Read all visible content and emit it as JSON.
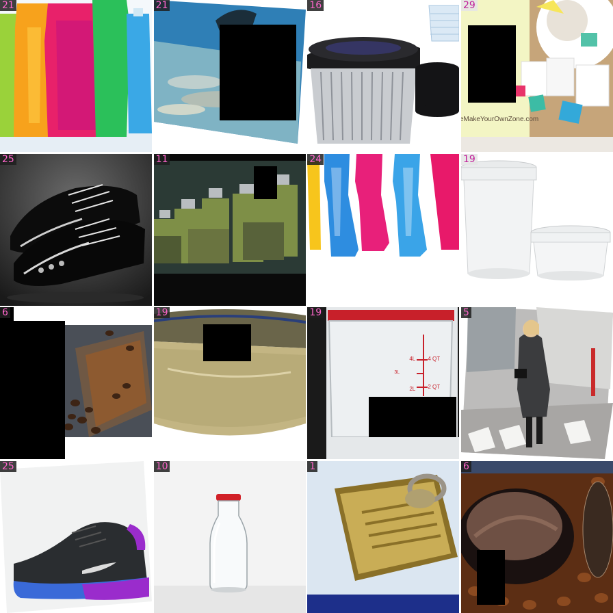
{
  "grid": {
    "rows": 4,
    "cols": 4
  },
  "tiles": [
    {
      "label": "21",
      "icon": "soda-bottles-image",
      "title": "soda bottles"
    },
    {
      "label": "21",
      "icon": "underwater-plastic-image",
      "title": "underwater plastic waste"
    },
    {
      "label": "16",
      "icon": "coffee-cup-lids-image",
      "title": "paper cups with lids"
    },
    {
      "label": "29",
      "icon": "tea-bags-image",
      "title": "tea bags",
      "text": "eMakeYourOwnZone.com"
    },
    {
      "label": "25",
      "icon": "patent-shoes-image",
      "title": "patent leather shoes"
    },
    {
      "label": "11",
      "icon": "green-glass-jars-image",
      "title": "green glass jars"
    },
    {
      "label": "24",
      "icon": "colored-bottles-image",
      "title": "colored plastic bottles"
    },
    {
      "label": "19",
      "icon": "plastic-tubs-image",
      "title": "plastic tubs with lids"
    },
    {
      "label": "6",
      "icon": "coffee-beans-drawer-image",
      "title": "coffee beans drawer"
    },
    {
      "label": "19",
      "icon": "food-container-image",
      "title": "food storage container"
    },
    {
      "label": "19",
      "icon": "measuring-container-image",
      "title": "measuring container",
      "text_a": "4L",
      "text_b": "4 QT",
      "text_c": "3L",
      "text_d": "2 QT",
      "text_e": "2L"
    },
    {
      "label": "5",
      "icon": "street-fashion-image",
      "title": "woman walking street"
    },
    {
      "label": "25",
      "icon": "sneaker-image",
      "title": "basketball sneaker"
    },
    {
      "label": "10",
      "icon": "milk-bottle-image",
      "title": "glass milk bottle"
    },
    {
      "label": "1",
      "icon": "tin-can-image",
      "title": "sardine tin can"
    },
    {
      "label": "6",
      "icon": "ground-coffee-image",
      "title": "ground coffee"
    }
  ]
}
